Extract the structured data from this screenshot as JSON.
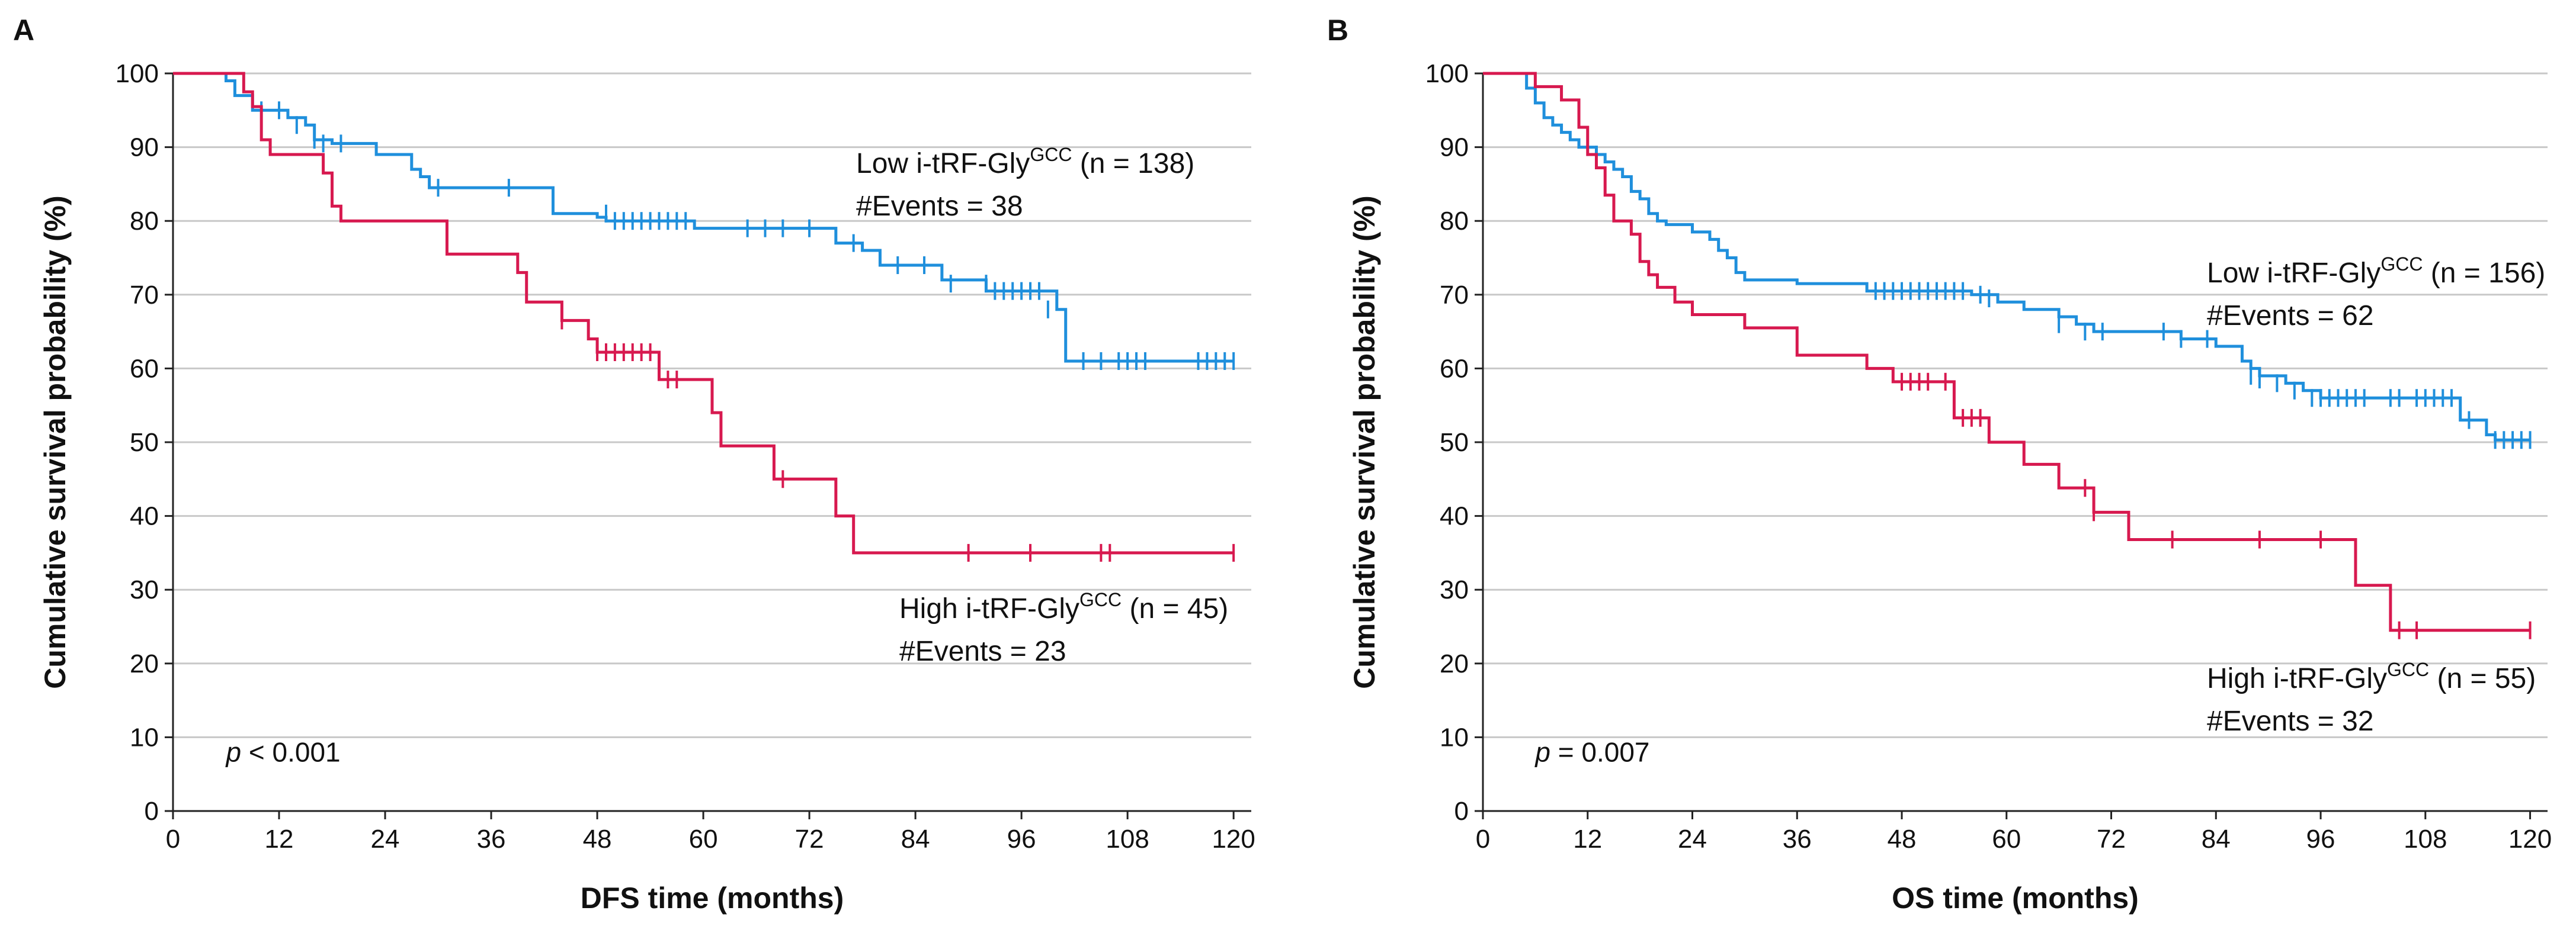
{
  "colors": {
    "low": "#1f8fdc",
    "high": "#d7194f",
    "grid": "#c8c8c8",
    "axis": "#222222"
  },
  "chart_data": [
    {
      "type": "line",
      "subtype": "kaplan-meier",
      "panel": "A",
      "xlabel": "DFS time (months)",
      "ylabel": "Cumulative survival probability (%)",
      "xlim": [
        0,
        122
      ],
      "ylim": [
        0,
        100
      ],
      "xticks": [
        0,
        12,
        24,
        36,
        48,
        60,
        72,
        84,
        96,
        108,
        120
      ],
      "yticks": [
        0,
        10,
        20,
        30,
        40,
        50,
        60,
        70,
        80,
        90,
        100
      ],
      "grid": true,
      "pvalue": {
        "prefix": "p",
        "rest": " < 0.001"
      },
      "series": [
        {
          "name": "Low i-tRF-GlyGCC (n = 138)",
          "label_main": "Low i-tRF-Gly",
          "label_sup": "GCC",
          "label_tail": " (n = 138)",
          "events_label": "#Events = 38",
          "color_key": "low",
          "steps": [
            [
              0,
              100
            ],
            [
              6,
              99
            ],
            [
              7,
              97
            ],
            [
              9,
              95
            ],
            [
              13,
              94
            ],
            [
              15,
              93
            ],
            [
              16,
              91
            ],
            [
              18,
              90.5
            ],
            [
              23,
              89
            ],
            [
              27,
              87
            ],
            [
              28,
              86
            ],
            [
              29,
              84.5
            ],
            [
              43,
              81
            ],
            [
              48,
              80.5
            ],
            [
              49,
              80
            ],
            [
              59,
              79
            ],
            [
              75,
              77
            ],
            [
              78,
              76
            ],
            [
              80,
              74
            ],
            [
              87,
              72
            ],
            [
              92,
              70.5
            ],
            [
              100,
              68
            ],
            [
              101,
              61
            ],
            [
              120,
              61
            ]
          ],
          "censors": [
            [
              10,
              95
            ],
            [
              12,
              95
            ],
            [
              14,
              93
            ],
            [
              16,
              91
            ],
            [
              17,
              90.5
            ],
            [
              19,
              90.5
            ],
            [
              30,
              84.5
            ],
            [
              38,
              84.5
            ],
            [
              49,
              81
            ],
            [
              50,
              80
            ],
            [
              51,
              80
            ],
            [
              52,
              80
            ],
            [
              53,
              80
            ],
            [
              54,
              80
            ],
            [
              55,
              80
            ],
            [
              56,
              80
            ],
            [
              57,
              80
            ],
            [
              58,
              80
            ],
            [
              65,
              79
            ],
            [
              67,
              79
            ],
            [
              69,
              79
            ],
            [
              72,
              79
            ],
            [
              77,
              77
            ],
            [
              82,
              74
            ],
            [
              85,
              74
            ],
            [
              88,
              71.5
            ],
            [
              92,
              71.5
            ],
            [
              93,
              70.5
            ],
            [
              94,
              70.5
            ],
            [
              95,
              70.5
            ],
            [
              96,
              70.5
            ],
            [
              97,
              70.5
            ],
            [
              98,
              70.5
            ],
            [
              99,
              68
            ],
            [
              103,
              61
            ],
            [
              105,
              61
            ],
            [
              107,
              61
            ],
            [
              108,
              61
            ],
            [
              109,
              61
            ],
            [
              110,
              61
            ],
            [
              116,
              61
            ],
            [
              117,
              61
            ],
            [
              118,
              61
            ],
            [
              119,
              61
            ],
            [
              120,
              61
            ]
          ]
        },
        {
          "name": "High i-tRF-GlyGCC (n = 45)",
          "label_main": "High i-tRF-Gly",
          "label_sup": "GCC",
          "label_tail": " (n = 45)",
          "events_label": "#Events = 23",
          "color_key": "high",
          "steps": [
            [
              0,
              100
            ],
            [
              8,
              97.5
            ],
            [
              9,
              95.5
            ],
            [
              10,
              91
            ],
            [
              11,
              89
            ],
            [
              17,
              86.5
            ],
            [
              18,
              82
            ],
            [
              19,
              80
            ],
            [
              31,
              75.5
            ],
            [
              39,
              73
            ],
            [
              40,
              69
            ],
            [
              44,
              66.5
            ],
            [
              47,
              64
            ],
            [
              48,
              62.2
            ],
            [
              55,
              58.5
            ],
            [
              57,
              58.5
            ],
            [
              61,
              54
            ],
            [
              62,
              49.5
            ],
            [
              68,
              45
            ],
            [
              75,
              40
            ],
            [
              77,
              35
            ],
            [
              120,
              35
            ]
          ],
          "censors": [
            [
              44,
              66.5
            ],
            [
              48,
              62.2
            ],
            [
              49,
              62.2
            ],
            [
              50,
              62.2
            ],
            [
              51,
              62.2
            ],
            [
              52,
              62.2
            ],
            [
              53,
              62.2
            ],
            [
              54,
              62.2
            ],
            [
              56,
              58.5
            ],
            [
              57,
              58.5
            ],
            [
              69,
              45
            ],
            [
              90,
              35
            ],
            [
              97,
              35
            ],
            [
              105,
              35
            ],
            [
              106,
              35
            ],
            [
              120,
              35
            ]
          ]
        }
      ]
    },
    {
      "type": "line",
      "subtype": "kaplan-meier",
      "panel": "B",
      "xlabel": "OS time (months)",
      "ylabel": "Cumulative survival probability (%)",
      "xlim": [
        0,
        122
      ],
      "ylim": [
        0,
        100
      ],
      "xticks": [
        0,
        12,
        24,
        36,
        48,
        60,
        72,
        84,
        96,
        108,
        120
      ],
      "yticks": [
        0,
        10,
        20,
        30,
        40,
        50,
        60,
        70,
        80,
        90,
        100
      ],
      "grid": true,
      "pvalue": {
        "prefix": "p",
        "rest": " = 0.007"
      },
      "series": [
        {
          "name": "Low i-tRF-GlyGCC (n = 156)",
          "label_main": "Low i-tRF-Gly",
          "label_sup": "GCC",
          "label_tail": " (n = 156)",
          "events_label": "#Events = 62",
          "color_key": "low",
          "steps": [
            [
              0,
              100
            ],
            [
              5,
              98
            ],
            [
              6,
              96
            ],
            [
              7,
              94
            ],
            [
              8,
              93
            ],
            [
              9,
              92
            ],
            [
              10,
              91
            ],
            [
              11,
              90
            ],
            [
              13,
              89
            ],
            [
              14,
              88
            ],
            [
              15,
              87
            ],
            [
              16,
              86
            ],
            [
              17,
              84
            ],
            [
              18,
              83
            ],
            [
              19,
              81
            ],
            [
              20,
              80
            ],
            [
              21,
              79.5
            ],
            [
              24,
              78.5
            ],
            [
              26,
              77.5
            ],
            [
              27,
              76
            ],
            [
              28,
              75
            ],
            [
              29,
              73
            ],
            [
              30,
              72
            ],
            [
              36,
              71.5
            ],
            [
              44,
              70.5
            ],
            [
              56,
              70
            ],
            [
              59,
              69
            ],
            [
              62,
              68
            ],
            [
              66,
              67
            ],
            [
              68,
              66
            ],
            [
              70,
              65
            ],
            [
              80,
              64
            ],
            [
              84,
              63
            ],
            [
              87,
              61
            ],
            [
              88,
              60
            ],
            [
              89,
              59
            ],
            [
              92,
              58
            ],
            [
              94,
              57
            ],
            [
              96,
              56
            ],
            [
              112,
              53
            ],
            [
              115,
              51
            ],
            [
              116,
              50.3
            ],
            [
              120,
              50.3
            ]
          ],
          "censors": [
            [
              12,
              90
            ],
            [
              13,
              89
            ],
            [
              45,
              70.5
            ],
            [
              46,
              70.5
            ],
            [
              47,
              70.5
            ],
            [
              48,
              70.5
            ],
            [
              49,
              70.5
            ],
            [
              50,
              70.5
            ],
            [
              51,
              70.5
            ],
            [
              52,
              70.5
            ],
            [
              53,
              70.5
            ],
            [
              54,
              70.5
            ],
            [
              55,
              70.5
            ],
            [
              57,
              70
            ],
            [
              58,
              69.5
            ],
            [
              66,
              66
            ],
            [
              69,
              65
            ],
            [
              71,
              65
            ],
            [
              78,
              65
            ],
            [
              80,
              64
            ],
            [
              83,
              64
            ],
            [
              88,
              59
            ],
            [
              89,
              58.5
            ],
            [
              91,
              58
            ],
            [
              93,
              57
            ],
            [
              95,
              56
            ],
            [
              96,
              56
            ],
            [
              97,
              56
            ],
            [
              98,
              56
            ],
            [
              99,
              56
            ],
            [
              100,
              56
            ],
            [
              101,
              56
            ],
            [
              104,
              56
            ],
            [
              105,
              56
            ],
            [
              107,
              56
            ],
            [
              108,
              56
            ],
            [
              109,
              56
            ],
            [
              110,
              56
            ],
            [
              111,
              56
            ],
            [
              113,
              53
            ],
            [
              116,
              50.3
            ],
            [
              117,
              50.3
            ],
            [
              118,
              50.3
            ],
            [
              119,
              50.3
            ],
            [
              120,
              50.3
            ]
          ]
        },
        {
          "name": "High i-tRF-GlyGCC (n = 55)",
          "label_main": "High i-tRF-Gly",
          "label_sup": "GCC",
          "label_tail": " (n = 55)",
          "events_label": "#Events = 32",
          "color_key": "high",
          "steps": [
            [
              0,
              100
            ],
            [
              6,
              98.2
            ],
            [
              9,
              96.4
            ],
            [
              11,
              92.7
            ],
            [
              12,
              89
            ],
            [
              13,
              87.2
            ],
            [
              14,
              83.5
            ],
            [
              15,
              80
            ],
            [
              17,
              78.2
            ],
            [
              18,
              74.5
            ],
            [
              19,
              72.7
            ],
            [
              20,
              71
            ],
            [
              22,
              69
            ],
            [
              24,
              67.3
            ],
            [
              30,
              65.5
            ],
            [
              36,
              61.8
            ],
            [
              44,
              60
            ],
            [
              47,
              58.2
            ],
            [
              54,
              53.3
            ],
            [
              58,
              50
            ],
            [
              62,
              47
            ],
            [
              66,
              43.8
            ],
            [
              70,
              40.5
            ],
            [
              74,
              36.8
            ],
            [
              97,
              36.8
            ],
            [
              100,
              30.6
            ],
            [
              104,
              24.5
            ],
            [
              120,
              24.5
            ]
          ],
          "censors": [
            [
              48,
              58.2
            ],
            [
              49,
              58.2
            ],
            [
              50,
              58.2
            ],
            [
              51,
              58.2
            ],
            [
              53,
              58.2
            ],
            [
              55,
              53.3
            ],
            [
              56,
              53.3
            ],
            [
              57,
              53.3
            ],
            [
              69,
              43.8
            ],
            [
              70,
              40.5
            ],
            [
              79,
              36.8
            ],
            [
              89,
              36.8
            ],
            [
              96,
              36.8
            ],
            [
              105,
              24.5
            ],
            [
              107,
              24.5
            ],
            [
              120,
              24.5
            ]
          ]
        }
      ]
    }
  ]
}
